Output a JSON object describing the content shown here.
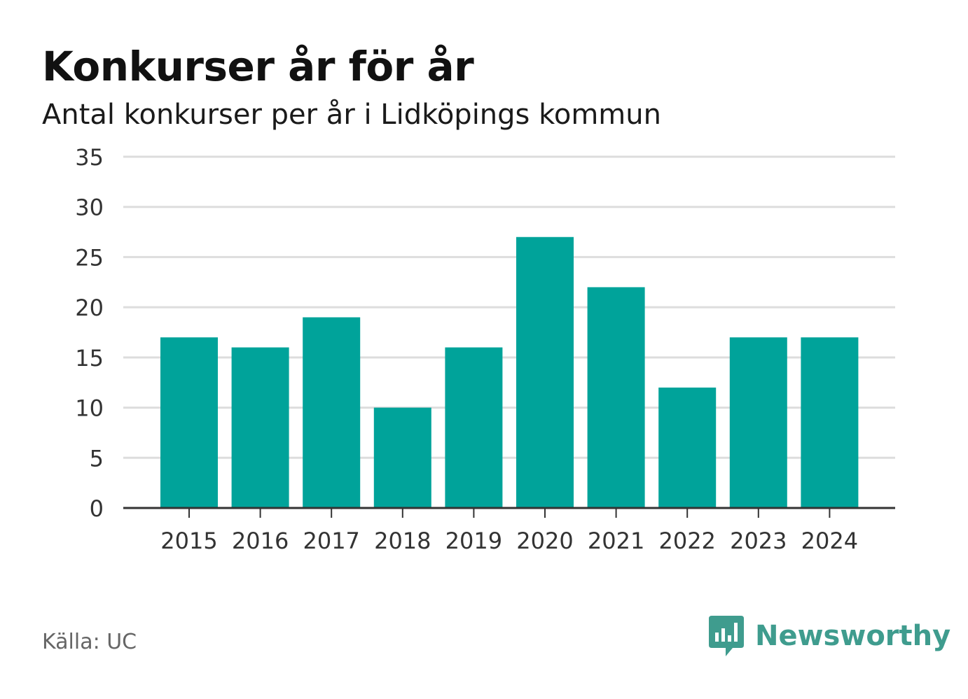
{
  "header": {
    "title": "Konkurser år för år",
    "subtitle": "Antal konkurser per år i Lidköpings kommun"
  },
  "footer": {
    "source": "Källa: UC",
    "brand": "Newsworthy"
  },
  "colors": {
    "bar": "#00A39A",
    "gridline": "#dddddd",
    "axis": "#333333",
    "brand": "#3f9c8e",
    "source_text": "#666666"
  },
  "chart_data": {
    "type": "bar",
    "title": "Konkurser år för år",
    "subtitle": "Antal konkurser per år i Lidköpings kommun",
    "categories": [
      "2015",
      "2016",
      "2017",
      "2018",
      "2019",
      "2020",
      "2021",
      "2022",
      "2023",
      "2024"
    ],
    "values": [
      17,
      16,
      19,
      10,
      16,
      27,
      22,
      12,
      17,
      17
    ],
    "ylim": [
      0,
      35
    ],
    "yticks": [
      "0",
      "5",
      "10",
      "15",
      "20",
      "25",
      "30",
      "35"
    ],
    "grid": true,
    "legend": "none"
  }
}
